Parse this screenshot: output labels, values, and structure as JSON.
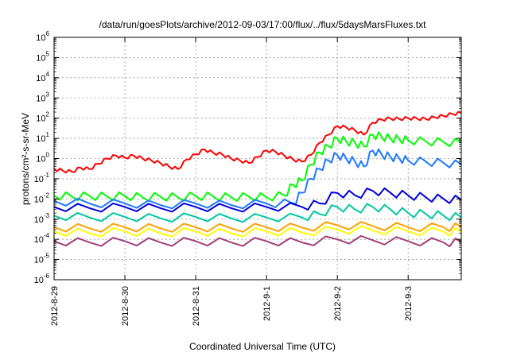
{
  "chart_data": {
    "type": "line",
    "title": "/data/run/goesPlots/archive/2012-09-03/17:00/flux/../flux/5daysMarsFluxes.txt",
    "xlabel": "Coordinated Universal Time (UTC)",
    "ylabel": "protons/cm²-s-sr-MeV",
    "y_scale": "log",
    "ylim": [
      1e-06,
      1000000.0
    ],
    "y_ticks": [
      {
        "value": 1e-06,
        "base": "10",
        "exp": "-6"
      },
      {
        "value": 1e-05,
        "base": "10",
        "exp": "-5"
      },
      {
        "value": 0.0001,
        "base": "10",
        "exp": "-4"
      },
      {
        "value": 0.001,
        "base": "10",
        "exp": "-3"
      },
      {
        "value": 0.01,
        "base": "10",
        "exp": "-2"
      },
      {
        "value": 0.1,
        "base": "10",
        "exp": "-1"
      },
      {
        "value": 1.0,
        "base": "10",
        "exp": "0"
      },
      {
        "value": 10.0,
        "base": "10",
        "exp": "1"
      },
      {
        "value": 100.0,
        "base": "10",
        "exp": "2"
      },
      {
        "value": 1000.0,
        "base": "10",
        "exp": "3"
      },
      {
        "value": 10000.0,
        "base": "10",
        "exp": "4"
      },
      {
        "value": 100000.0,
        "base": "10",
        "exp": "5"
      },
      {
        "value": 1000000.0,
        "base": "10",
        "exp": "6"
      }
    ],
    "xlim": [
      "2012-08-29T00:00",
      "2012-09-03T18:00"
    ],
    "x_ticks": [
      "2012-8-29",
      "2012-8-30",
      "2012-8-31",
      "2012-9-1",
      "2012-9-2",
      "2012-9-3"
    ],
    "x_tick_dates": [
      "2012-08-29",
      "2012-08-30",
      "2012-08-31",
      "2012-09-01",
      "2012-09-02",
      "2012-09-03"
    ],
    "grid": true,
    "series": [
      {
        "color": "#ff0000",
        "points": [
          [
            "2012-08-29T00:00",
            0.3
          ],
          [
            "2012-08-29T03:00",
            0.25
          ],
          [
            "2012-08-29T06:00",
            0.22
          ],
          [
            "2012-08-29T09:00",
            0.35
          ],
          [
            "2012-08-29T12:00",
            0.3
          ],
          [
            "2012-08-29T15:00",
            0.55
          ],
          [
            "2012-08-29T18:00",
            1.0
          ],
          [
            "2012-08-29T21:00",
            1.4
          ],
          [
            "2012-08-30T00:00",
            1.1
          ],
          [
            "2012-08-30T03:00",
            1.4
          ],
          [
            "2012-08-30T06:00",
            1.0
          ],
          [
            "2012-08-30T09:00",
            0.8
          ],
          [
            "2012-08-30T12:00",
            0.6
          ],
          [
            "2012-08-30T15:00",
            0.4
          ],
          [
            "2012-08-30T18:00",
            0.3
          ],
          [
            "2012-08-30T21:00",
            0.9
          ],
          [
            "2012-08-31T00:00",
            1.6
          ],
          [
            "2012-08-31T03:00",
            2.8
          ],
          [
            "2012-08-31T06:00",
            1.9
          ],
          [
            "2012-08-31T09:00",
            1.6
          ],
          [
            "2012-08-31T12:00",
            1.0
          ],
          [
            "2012-08-31T15:00",
            0.8
          ],
          [
            "2012-08-31T18:00",
            0.6
          ],
          [
            "2012-08-31T21:00",
            1.2
          ],
          [
            "2012-09-01T00:00",
            2.5
          ],
          [
            "2012-09-01T03:00",
            2.2
          ],
          [
            "2012-09-01T06:00",
            1.4
          ],
          [
            "2012-09-01T09:00",
            0.9
          ],
          [
            "2012-09-01T12:00",
            0.7
          ],
          [
            "2012-09-01T15:00",
            1.5
          ],
          [
            "2012-09-01T18:00",
            6.0
          ],
          [
            "2012-09-01T21:00",
            15.0
          ],
          [
            "2012-09-02T00:00",
            40.0
          ],
          [
            "2012-09-02T03:00",
            35.0
          ],
          [
            "2012-09-02T06:00",
            25.0
          ],
          [
            "2012-09-02T09:00",
            15.0
          ],
          [
            "2012-09-02T12:00",
            60.0
          ],
          [
            "2012-09-02T15:00",
            85.0
          ],
          [
            "2012-09-02T18:00",
            95.0
          ],
          [
            "2012-09-02T21:00",
            90.0
          ],
          [
            "2012-09-03T00:00",
            100.0
          ],
          [
            "2012-09-03T03:00",
            95.0
          ],
          [
            "2012-09-03T06:00",
            90.0
          ],
          [
            "2012-09-03T09:00",
            110.0
          ],
          [
            "2012-09-03T12:00",
            130.0
          ],
          [
            "2012-09-03T15:00",
            160.0
          ],
          [
            "2012-09-03T18:00",
            180.0
          ]
        ]
      },
      {
        "color": "#00ff00",
        "points": [
          [
            "2012-08-29T00:00",
            0.015
          ],
          [
            "2012-08-29T06:00",
            0.013
          ],
          [
            "2012-08-29T12:00",
            0.014
          ],
          [
            "2012-08-29T18:00",
            0.013
          ],
          [
            "2012-08-30T00:00",
            0.014
          ],
          [
            "2012-08-30T06:00",
            0.012
          ],
          [
            "2012-08-30T12:00",
            0.013
          ],
          [
            "2012-08-30T18:00",
            0.012
          ],
          [
            "2012-08-31T00:00",
            0.014
          ],
          [
            "2012-08-31T06:00",
            0.013
          ],
          [
            "2012-08-31T12:00",
            0.012
          ],
          [
            "2012-08-31T18:00",
            0.013
          ],
          [
            "2012-09-01T00:00",
            0.012
          ],
          [
            "2012-09-01T06:00",
            0.015
          ],
          [
            "2012-09-01T09:00",
            0.05
          ],
          [
            "2012-09-01T12:00",
            0.08
          ],
          [
            "2012-09-01T15:00",
            0.5
          ],
          [
            "2012-09-01T18:00",
            2.0
          ],
          [
            "2012-09-01T21:00",
            4.0
          ],
          [
            "2012-09-02T00:00",
            10.0
          ],
          [
            "2012-09-02T03:00",
            7.0
          ],
          [
            "2012-09-02T06:00",
            6.0
          ],
          [
            "2012-09-02T09:00",
            4.0
          ],
          [
            "2012-09-02T12:00",
            15.0
          ],
          [
            "2012-09-02T15:00",
            12.0
          ],
          [
            "2012-09-02T18:00",
            10.0
          ],
          [
            "2012-09-02T21:00",
            9.0
          ],
          [
            "2012-09-03T00:00",
            8.0
          ],
          [
            "2012-09-03T06:00",
            7.0
          ],
          [
            "2012-09-03T12:00",
            6.5
          ],
          [
            "2012-09-03T18:00",
            6.0
          ]
        ]
      },
      {
        "color": "#1e78ff",
        "points": [
          [
            "2012-08-29T00:00",
            0.008
          ],
          [
            "2012-08-29T12:00",
            0.006
          ],
          [
            "2012-08-30T00:00",
            0.006
          ],
          [
            "2012-08-30T12:00",
            0.005
          ],
          [
            "2012-08-31T00:00",
            0.006
          ],
          [
            "2012-08-31T12:00",
            0.005
          ],
          [
            "2012-09-01T00:00",
            0.006
          ],
          [
            "2012-09-01T09:00",
            0.006
          ],
          [
            "2012-09-01T12:00",
            0.02
          ],
          [
            "2012-09-01T15:00",
            0.1
          ],
          [
            "2012-09-01T18:00",
            0.3
          ],
          [
            "2012-09-01T21:00",
            0.8
          ],
          [
            "2012-09-02T00:00",
            1.5
          ],
          [
            "2012-09-02T03:00",
            1.0
          ],
          [
            "2012-09-02T06:00",
            0.7
          ],
          [
            "2012-09-02T09:00",
            0.4
          ],
          [
            "2012-09-02T12:00",
            2.5
          ],
          [
            "2012-09-02T15:00",
            1.6
          ],
          [
            "2012-09-02T18:00",
            1.2
          ],
          [
            "2012-09-02T21:00",
            1.0
          ],
          [
            "2012-09-03T00:00",
            0.8
          ],
          [
            "2012-09-03T06:00",
            0.7
          ],
          [
            "2012-09-03T12:00",
            0.6
          ],
          [
            "2012-09-03T18:00",
            0.5
          ]
        ]
      },
      {
        "color": "#0000e0",
        "points": [
          [
            "2012-08-29T00:00",
            0.004
          ],
          [
            "2012-08-29T12:00",
            0.0035
          ],
          [
            "2012-08-30T00:00",
            0.004
          ],
          [
            "2012-08-30T12:00",
            0.0035
          ],
          [
            "2012-08-31T00:00",
            0.004
          ],
          [
            "2012-08-31T12:00",
            0.0035
          ],
          [
            "2012-09-01T00:00",
            0.004
          ],
          [
            "2012-09-01T12:00",
            0.004
          ],
          [
            "2012-09-01T18:00",
            0.006
          ],
          [
            "2012-09-02T00:00",
            0.02
          ],
          [
            "2012-09-02T06:00",
            0.015
          ],
          [
            "2012-09-02T12:00",
            0.025
          ],
          [
            "2012-09-02T18:00",
            0.02
          ],
          [
            "2012-09-03T00:00",
            0.015
          ],
          [
            "2012-09-03T06:00",
            0.012
          ],
          [
            "2012-09-03T12:00",
            0.01
          ],
          [
            "2012-09-03T18:00",
            0.009
          ]
        ]
      },
      {
        "color": "#00c8a0",
        "points": [
          [
            "2012-08-29T00:00",
            0.0015
          ],
          [
            "2012-08-29T12:00",
            0.0012
          ],
          [
            "2012-08-30T00:00",
            0.0013
          ],
          [
            "2012-08-30T12:00",
            0.0011
          ],
          [
            "2012-08-31T00:00",
            0.0013
          ],
          [
            "2012-08-31T12:00",
            0.0011
          ],
          [
            "2012-09-01T00:00",
            0.0012
          ],
          [
            "2012-09-01T12:00",
            0.0012
          ],
          [
            "2012-09-01T18:00",
            0.0018
          ],
          [
            "2012-09-02T00:00",
            0.004
          ],
          [
            "2012-09-02T06:00",
            0.003
          ],
          [
            "2012-09-02T12:00",
            0.004
          ],
          [
            "2012-09-02T18:00",
            0.003
          ],
          [
            "2012-09-03T00:00",
            0.002
          ],
          [
            "2012-09-03T06:00",
            0.0018
          ],
          [
            "2012-09-03T12:00",
            0.0015
          ],
          [
            "2012-09-03T18:00",
            0.0012
          ]
        ]
      },
      {
        "color": "#ffa000",
        "points": [
          [
            "2012-08-29T00:00",
            0.0004
          ],
          [
            "2012-08-29T12:00",
            0.00035
          ],
          [
            "2012-08-30T00:00",
            0.0004
          ],
          [
            "2012-08-30T12:00",
            0.00035
          ],
          [
            "2012-08-31T00:00",
            0.0004
          ],
          [
            "2012-08-31T12:00",
            0.00035
          ],
          [
            "2012-09-01T00:00",
            0.0004
          ],
          [
            "2012-09-01T12:00",
            0.00038
          ],
          [
            "2012-09-02T00:00",
            0.0005
          ],
          [
            "2012-09-02T12:00",
            0.00045
          ],
          [
            "2012-09-03T00:00",
            0.0004
          ],
          [
            "2012-09-03T12:00",
            0.0004
          ],
          [
            "2012-09-03T18:00",
            0.0004
          ]
        ]
      },
      {
        "color": "#ffff00",
        "points": [
          [
            "2012-08-29T00:00",
            0.00025
          ],
          [
            "2012-08-29T12:00",
            0.0002
          ],
          [
            "2012-08-30T00:00",
            0.00025
          ],
          [
            "2012-08-30T12:00",
            0.0002
          ],
          [
            "2012-08-31T00:00",
            0.00025
          ],
          [
            "2012-08-31T12:00",
            0.0002
          ],
          [
            "2012-09-01T00:00",
            0.00025
          ],
          [
            "2012-09-01T12:00",
            0.00022
          ],
          [
            "2012-09-02T00:00",
            0.0003
          ],
          [
            "2012-09-02T12:00",
            0.00028
          ],
          [
            "2012-09-03T00:00",
            0.00025
          ],
          [
            "2012-09-03T12:00",
            0.00024
          ],
          [
            "2012-09-03T18:00",
            0.00023
          ]
        ]
      },
      {
        "color": "#a0407a",
        "points": [
          [
            "2012-08-29T00:00",
            8e-05
          ],
          [
            "2012-08-29T12:00",
            7e-05
          ],
          [
            "2012-08-30T00:00",
            8e-05
          ],
          [
            "2012-08-30T12:00",
            7e-05
          ],
          [
            "2012-08-31T00:00",
            8e-05
          ],
          [
            "2012-08-31T12:00",
            7e-05
          ],
          [
            "2012-09-01T00:00",
            8e-05
          ],
          [
            "2012-09-01T12:00",
            7e-05
          ],
          [
            "2012-09-02T00:00",
            0.0001
          ],
          [
            "2012-09-02T12:00",
            9e-05
          ],
          [
            "2012-09-03T00:00",
            8e-05
          ],
          [
            "2012-09-03T12:00",
            7e-05
          ],
          [
            "2012-09-03T18:00",
            7e-05
          ]
        ]
      }
    ]
  }
}
